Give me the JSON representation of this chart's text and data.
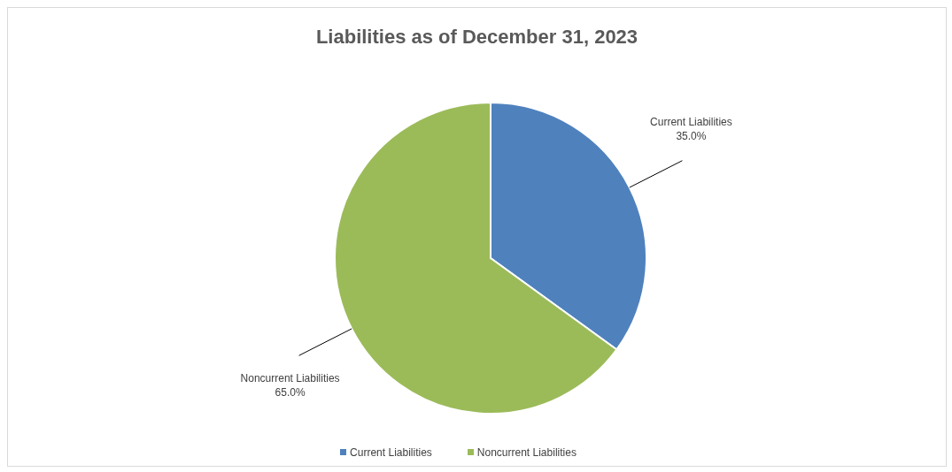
{
  "chart_data": {
    "type": "pie",
    "title": "Liabilities as of December 31, 2023",
    "categories": [
      "Current Liabilities",
      "Noncurrent Liabilities"
    ],
    "values": [
      35,
      65
    ],
    "colors": [
      "#4f81bd",
      "#9bbb59"
    ],
    "value_labels": [
      "35.0%",
      "65.0%"
    ],
    "legend": "bottom"
  }
}
